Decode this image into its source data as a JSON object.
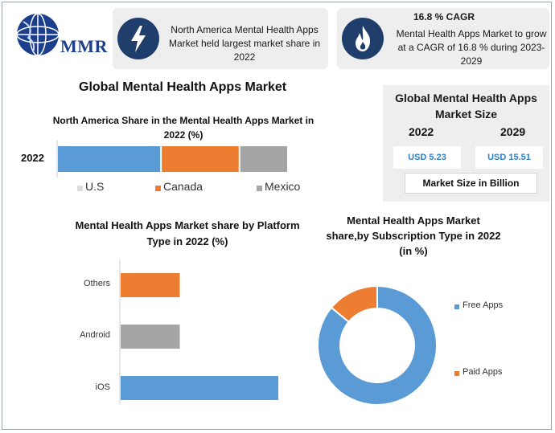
{
  "logo": {
    "text": "MMR"
  },
  "info1": {
    "icon": "lightning-icon",
    "text": "North America Mental Health Apps Market held largest market share in 2022"
  },
  "info2": {
    "icon": "flame-icon",
    "title": "16.8 % CAGR",
    "text": "Mental Health Apps Market to grow at a CAGR of 16.8 % during 2023-2029"
  },
  "main_title": "Global Mental Health Apps Market",
  "market_size": {
    "title": "Global Mental Health Apps Market Size",
    "year1": "2022",
    "year2": "2029",
    "value1": "USD 5.23",
    "value2": "USD 15.51",
    "unit": "Market Size in Billion"
  },
  "colors": {
    "blue": "#5b9bd5",
    "orange": "#ed7d31",
    "gray": "#a5a5a5",
    "navy": "#1f3e6b"
  },
  "chart_data": [
    {
      "type": "bar",
      "orientation": "horizontal-stacked",
      "title": "North America Share in the Mental Health Apps Market in 2022 (%)",
      "categories": [
        "2022"
      ],
      "series": [
        {
          "name": "U.S",
          "values": [
            45
          ],
          "color": "#5b9bd5"
        },
        {
          "name": "Canada",
          "values": [
            34
          ],
          "color": "#ed7d31"
        },
        {
          "name": "Mexico",
          "values": [
            21
          ],
          "color": "#a5a5a5"
        }
      ],
      "legend": "bottom"
    },
    {
      "type": "bar",
      "orientation": "horizontal",
      "title": "Mental Health Apps Market share by Platform Type in 2022  (%)",
      "categories": [
        "Others",
        "Android",
        "iOS"
      ],
      "values": [
        15,
        15,
        40
      ],
      "colors": [
        "#ed7d31",
        "#a5a5a5",
        "#5b9bd5"
      ],
      "xlim": [
        0,
        50
      ]
    },
    {
      "type": "pie",
      "variant": "donut",
      "title": "Mental Health Apps Market share,by Subscription Type in 2022 (in %)",
      "categories": [
        "Free Apps",
        "Paid Apps"
      ],
      "values": [
        86,
        14
      ],
      "colors": [
        "#5b9bd5",
        "#ed7d31"
      ],
      "legend": "right"
    }
  ]
}
